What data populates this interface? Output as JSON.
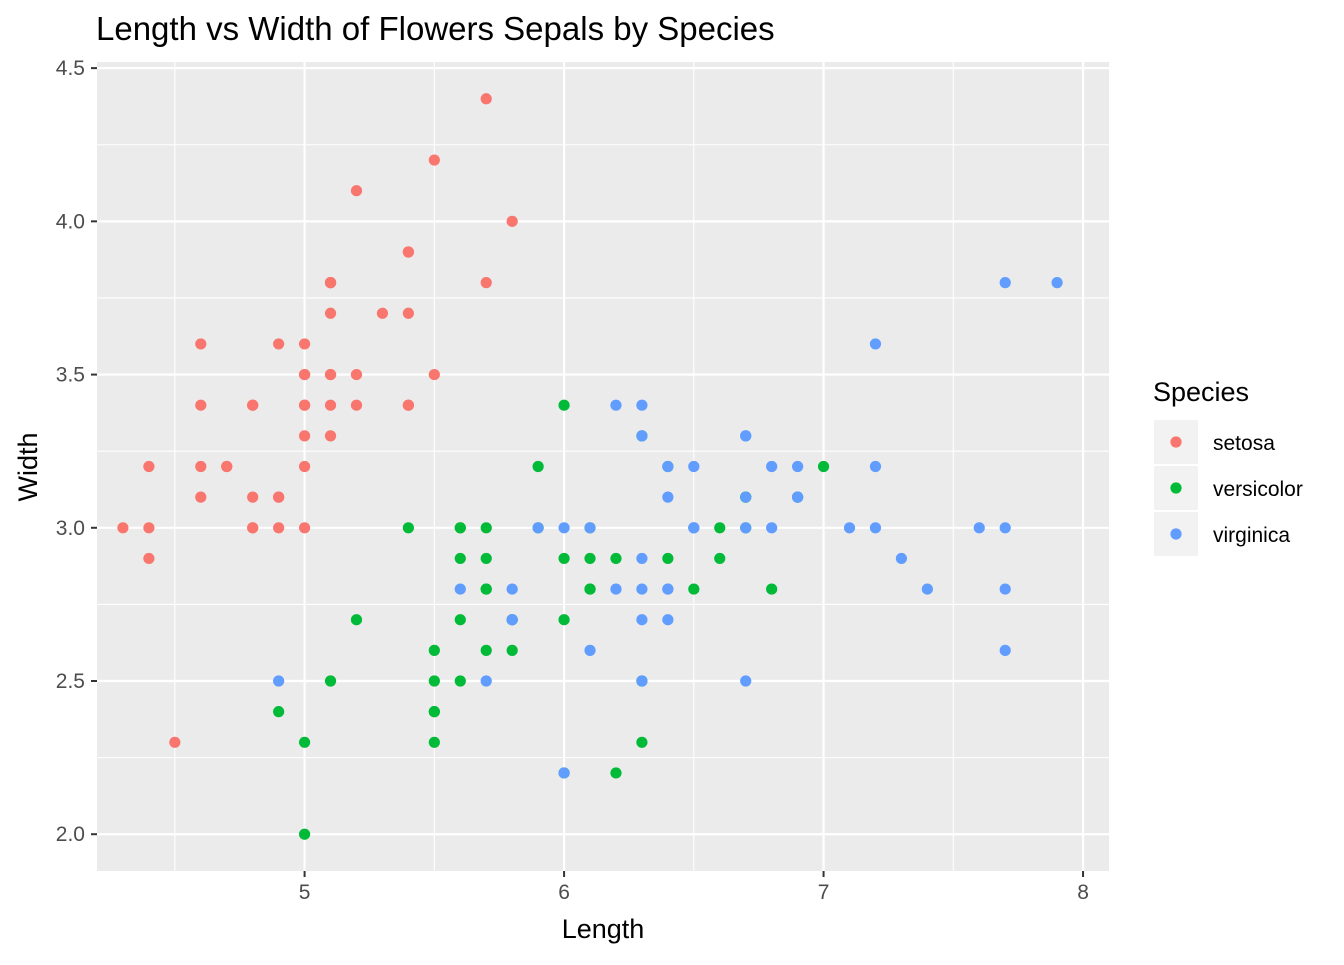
{
  "chart_data": {
    "type": "scatter",
    "title": "Length vs Width of Flowers Sepals by Species",
    "xlabel": "Length",
    "ylabel": "Width",
    "xlim": [
      4.2,
      8.1
    ],
    "ylim": [
      1.88,
      4.52
    ],
    "x_ticks": [
      5,
      6,
      7,
      8
    ],
    "x_minor_ticks": [
      4.5,
      5.5,
      6.5,
      7.5
    ],
    "x_tick_labels": [
      "5",
      "6",
      "7",
      "8"
    ],
    "y_ticks": [
      2.0,
      2.5,
      3.0,
      3.5,
      4.0,
      4.5
    ],
    "y_minor_ticks": [
      2.25,
      2.75,
      3.25,
      3.75,
      4.25
    ],
    "y_tick_labels": [
      "2.0",
      "2.5",
      "3.0",
      "3.5",
      "4.0",
      "4.5"
    ],
    "grid": true,
    "panel_background": "#EBEBEB",
    "grid_color": "#FFFFFF",
    "legend": {
      "title": "Species",
      "position": "right"
    },
    "series": [
      {
        "name": "setosa",
        "color": "#F8766D",
        "points": [
          [
            5.1,
            3.5
          ],
          [
            4.9,
            3.0
          ],
          [
            4.7,
            3.2
          ],
          [
            4.6,
            3.1
          ],
          [
            5.0,
            3.6
          ],
          [
            5.4,
            3.9
          ],
          [
            4.6,
            3.4
          ],
          [
            5.0,
            3.4
          ],
          [
            4.4,
            2.9
          ],
          [
            4.9,
            3.1
          ],
          [
            5.4,
            3.7
          ],
          [
            4.8,
            3.4
          ],
          [
            4.8,
            3.0
          ],
          [
            4.3,
            3.0
          ],
          [
            5.8,
            4.0
          ],
          [
            5.7,
            4.4
          ],
          [
            5.4,
            3.9
          ],
          [
            5.1,
            3.5
          ],
          [
            5.7,
            3.8
          ],
          [
            5.1,
            3.8
          ],
          [
            5.4,
            3.4
          ],
          [
            5.1,
            3.7
          ],
          [
            4.6,
            3.6
          ],
          [
            5.1,
            3.3
          ],
          [
            4.8,
            3.4
          ],
          [
            5.0,
            3.0
          ],
          [
            5.0,
            3.4
          ],
          [
            5.2,
            3.5
          ],
          [
            5.2,
            3.4
          ],
          [
            4.7,
            3.2
          ],
          [
            4.8,
            3.1
          ],
          [
            5.4,
            3.4
          ],
          [
            5.2,
            4.1
          ],
          [
            5.5,
            4.2
          ],
          [
            4.9,
            3.1
          ],
          [
            5.0,
            3.2
          ],
          [
            5.5,
            3.5
          ],
          [
            4.9,
            3.6
          ],
          [
            4.4,
            3.0
          ],
          [
            5.1,
            3.4
          ],
          [
            5.0,
            3.5
          ],
          [
            4.5,
            2.3
          ],
          [
            4.4,
            3.2
          ],
          [
            5.0,
            3.5
          ],
          [
            5.1,
            3.8
          ],
          [
            4.8,
            3.0
          ],
          [
            5.1,
            3.8
          ],
          [
            4.6,
            3.2
          ],
          [
            5.3,
            3.7
          ],
          [
            5.0,
            3.3
          ]
        ]
      },
      {
        "name": "versicolor",
        "color": "#00BA38",
        "points": [
          [
            7.0,
            3.2
          ],
          [
            6.4,
            3.2
          ],
          [
            6.9,
            3.1
          ],
          [
            5.5,
            2.3
          ],
          [
            6.5,
            2.8
          ],
          [
            5.7,
            2.8
          ],
          [
            6.3,
            3.3
          ],
          [
            4.9,
            2.4
          ],
          [
            6.6,
            2.9
          ],
          [
            5.2,
            2.7
          ],
          [
            5.0,
            2.0
          ],
          [
            5.9,
            3.0
          ],
          [
            6.0,
            2.2
          ],
          [
            6.1,
            2.9
          ],
          [
            5.6,
            2.9
          ],
          [
            6.7,
            3.1
          ],
          [
            5.6,
            3.0
          ],
          [
            5.8,
            2.7
          ],
          [
            6.2,
            2.2
          ],
          [
            5.6,
            2.5
          ],
          [
            5.9,
            3.2
          ],
          [
            6.1,
            2.8
          ],
          [
            6.3,
            2.5
          ],
          [
            6.1,
            2.8
          ],
          [
            6.4,
            2.9
          ],
          [
            6.6,
            3.0
          ],
          [
            6.8,
            2.8
          ],
          [
            6.7,
            3.0
          ],
          [
            6.0,
            2.9
          ],
          [
            5.7,
            2.6
          ],
          [
            5.5,
            2.4
          ],
          [
            5.5,
            2.4
          ],
          [
            5.8,
            2.7
          ],
          [
            6.0,
            2.7
          ],
          [
            5.4,
            3.0
          ],
          [
            6.0,
            3.4
          ],
          [
            6.7,
            3.1
          ],
          [
            6.3,
            2.3
          ],
          [
            5.6,
            3.0
          ],
          [
            5.5,
            2.5
          ],
          [
            5.5,
            2.6
          ],
          [
            6.1,
            3.0
          ],
          [
            5.8,
            2.6
          ],
          [
            5.0,
            2.3
          ],
          [
            5.6,
            2.7
          ],
          [
            5.7,
            3.0
          ],
          [
            5.7,
            2.9
          ],
          [
            6.2,
            2.9
          ],
          [
            5.1,
            2.5
          ],
          [
            5.7,
            2.8
          ]
        ]
      },
      {
        "name": "virginica",
        "color": "#619CFF",
        "points": [
          [
            6.3,
            3.3
          ],
          [
            5.8,
            2.7
          ],
          [
            7.1,
            3.0
          ],
          [
            6.3,
            2.9
          ],
          [
            6.5,
            3.0
          ],
          [
            7.6,
            3.0
          ],
          [
            4.9,
            2.5
          ],
          [
            7.3,
            2.9
          ],
          [
            6.7,
            2.5
          ],
          [
            7.2,
            3.6
          ],
          [
            6.5,
            3.2
          ],
          [
            6.4,
            2.7
          ],
          [
            6.8,
            3.0
          ],
          [
            5.7,
            2.5
          ],
          [
            5.8,
            2.8
          ],
          [
            6.4,
            3.2
          ],
          [
            6.5,
            3.0
          ],
          [
            7.7,
            3.8
          ],
          [
            7.7,
            2.6
          ],
          [
            6.0,
            2.2
          ],
          [
            6.9,
            3.2
          ],
          [
            5.6,
            2.8
          ],
          [
            7.7,
            2.8
          ],
          [
            6.3,
            2.7
          ],
          [
            6.7,
            3.3
          ],
          [
            7.2,
            3.2
          ],
          [
            6.2,
            2.8
          ],
          [
            6.1,
            3.0
          ],
          [
            6.4,
            2.8
          ],
          [
            7.2,
            3.0
          ],
          [
            7.4,
            2.8
          ],
          [
            7.9,
            3.8
          ],
          [
            6.4,
            2.8
          ],
          [
            6.3,
            2.8
          ],
          [
            6.1,
            2.6
          ],
          [
            7.7,
            3.0
          ],
          [
            6.3,
            3.4
          ],
          [
            6.4,
            3.1
          ],
          [
            6.0,
            3.0
          ],
          [
            6.9,
            3.1
          ],
          [
            6.7,
            3.1
          ],
          [
            6.9,
            3.1
          ],
          [
            5.8,
            2.7
          ],
          [
            6.8,
            3.2
          ],
          [
            6.7,
            3.3
          ],
          [
            6.7,
            3.0
          ],
          [
            6.3,
            2.5
          ],
          [
            6.5,
            3.0
          ],
          [
            6.2,
            3.4
          ],
          [
            5.9,
            3.0
          ]
        ]
      }
    ]
  }
}
